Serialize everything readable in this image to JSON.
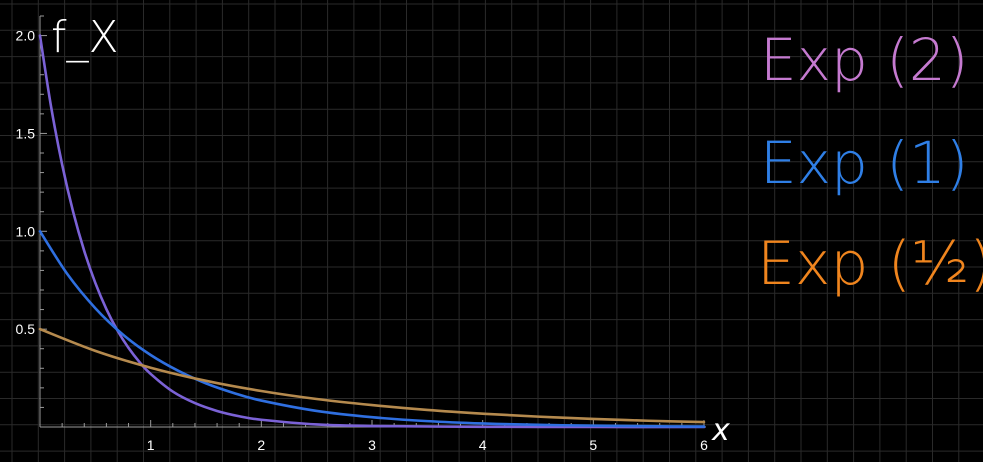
{
  "chart_data": {
    "type": "line",
    "title": "",
    "xlabel": "x",
    "ylabel": "f_X",
    "xlim": [
      0,
      6
    ],
    "ylim": [
      0,
      2.1
    ],
    "x_ticks": [
      "1",
      "2",
      "3",
      "4",
      "5",
      "6"
    ],
    "y_ticks": [
      "0.5",
      "1.0",
      "1.5",
      "2.0"
    ],
    "grid": false,
    "legend_position": "right",
    "background": "#000000",
    "series": [
      {
        "name": "Exp (2)",
        "color": "#7b62d6",
        "x": [
          0,
          0.1,
          0.2,
          0.3,
          0.4,
          0.5,
          0.6,
          0.7,
          0.8,
          0.9,
          1.0,
          1.2,
          1.4,
          1.6,
          1.8,
          2.0,
          2.5,
          3.0,
          4.0,
          5.0,
          6.0
        ],
        "values": [
          2.0,
          1.637,
          1.341,
          1.098,
          0.899,
          0.736,
          0.602,
          0.493,
          0.404,
          0.331,
          0.271,
          0.181,
          0.122,
          0.082,
          0.055,
          0.037,
          0.013,
          0.005,
          0.001,
          0.0,
          0.0
        ]
      },
      {
        "name": "Exp (1)",
        "color": "#2f6fe0",
        "x": [
          0,
          0.25,
          0.5,
          0.75,
          1.0,
          1.25,
          1.5,
          1.75,
          2.0,
          2.5,
          3.0,
          3.5,
          4.0,
          4.5,
          5.0,
          5.5,
          6.0
        ],
        "values": [
          1.0,
          0.779,
          0.607,
          0.472,
          0.368,
          0.287,
          0.223,
          0.174,
          0.135,
          0.082,
          0.05,
          0.03,
          0.018,
          0.011,
          0.007,
          0.004,
          0.002
        ]
      },
      {
        "name": "Exp (½)",
        "color": "#b58a4e",
        "x": [
          0,
          0.5,
          1.0,
          1.5,
          2.0,
          2.5,
          3.0,
          3.5,
          4.0,
          4.5,
          5.0,
          5.5,
          6.0
        ],
        "values": [
          0.5,
          0.389,
          0.303,
          0.236,
          0.184,
          0.143,
          0.112,
          0.087,
          0.068,
          0.053,
          0.041,
          0.032,
          0.025
        ]
      }
    ],
    "legend": [
      {
        "text": "Exp (2)",
        "color": "#c57ad0"
      },
      {
        "text": "Exp (1)",
        "color": "#2f7fe6"
      },
      {
        "text": "Exp (½)",
        "color": "#f0851e"
      }
    ]
  }
}
